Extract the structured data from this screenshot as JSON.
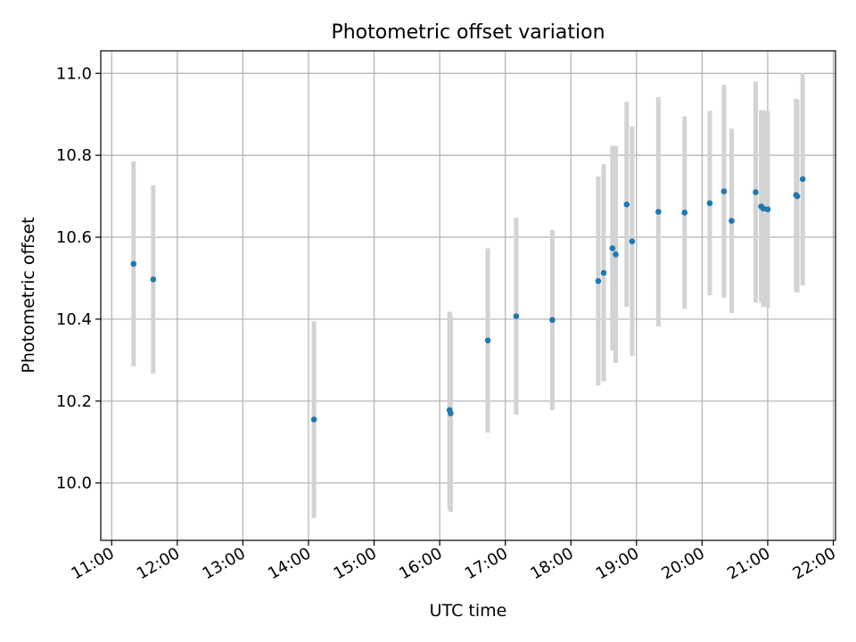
{
  "chart_data": {
    "type": "scatter",
    "title": "Photometric offset variation",
    "xlabel": "UTC time",
    "ylabel": "Photometric offset",
    "xlim": [
      "10:50",
      "22:02"
    ],
    "ylim": [
      9.86,
      11.055
    ],
    "x_ticks": [
      "11:00",
      "12:00",
      "13:00",
      "14:00",
      "15:00",
      "16:00",
      "17:00",
      "18:00",
      "19:00",
      "20:00",
      "21:00",
      "22:00"
    ],
    "y_ticks": [
      "10.0",
      "10.2",
      "10.4",
      "10.6",
      "10.8",
      "11.0"
    ],
    "grid": true,
    "point_color": "#1f77b4",
    "errorbar_color": "#d3d3d3",
    "points": [
      {
        "x": "11:20",
        "y": 10.535,
        "yerr": 0.25
      },
      {
        "x": "11:38",
        "y": 10.497,
        "yerr": 0.23
      },
      {
        "x": "14:05",
        "y": 10.155,
        "yerr": 0.24
      },
      {
        "x": "16:09",
        "y": 10.178,
        "yerr": 0.24
      },
      {
        "x": "16:10",
        "y": 10.17,
        "yerr": 0.24
      },
      {
        "x": "16:44",
        "y": 10.348,
        "yerr": 0.225
      },
      {
        "x": "17:10",
        "y": 10.407,
        "yerr": 0.24
      },
      {
        "x": "17:43",
        "y": 10.398,
        "yerr": 0.22
      },
      {
        "x": "18:25",
        "y": 10.493,
        "yerr": 0.255
      },
      {
        "x": "18:30",
        "y": 10.513,
        "yerr": 0.265
      },
      {
        "x": "18:38",
        "y": 10.573,
        "yerr": 0.25
      },
      {
        "x": "18:41",
        "y": 10.558,
        "yerr": 0.265
      },
      {
        "x": "18:51",
        "y": 10.68,
        "yerr": 0.25
      },
      {
        "x": "18:56",
        "y": 10.59,
        "yerr": 0.28
      },
      {
        "x": "19:20",
        "y": 10.662,
        "yerr": 0.28
      },
      {
        "x": "19:44",
        "y": 10.66,
        "yerr": 0.235
      },
      {
        "x": "20:07",
        "y": 10.683,
        "yerr": 0.225
      },
      {
        "x": "20:20",
        "y": 10.712,
        "yerr": 0.26
      },
      {
        "x": "20:27",
        "y": 10.64,
        "yerr": 0.225
      },
      {
        "x": "20:49",
        "y": 10.71,
        "yerr": 0.27
      },
      {
        "x": "20:54",
        "y": 10.675,
        "yerr": 0.235
      },
      {
        "x": "20:56",
        "y": 10.67,
        "yerr": 0.24
      },
      {
        "x": "21:00",
        "y": 10.668,
        "yerr": 0.24
      },
      {
        "x": "21:26",
        "y": 10.703,
        "yerr": 0.235
      },
      {
        "x": "21:27",
        "y": 10.7,
        "yerr": 0.235
      },
      {
        "x": "21:32",
        "y": 10.742,
        "yerr": 0.26
      }
    ]
  }
}
